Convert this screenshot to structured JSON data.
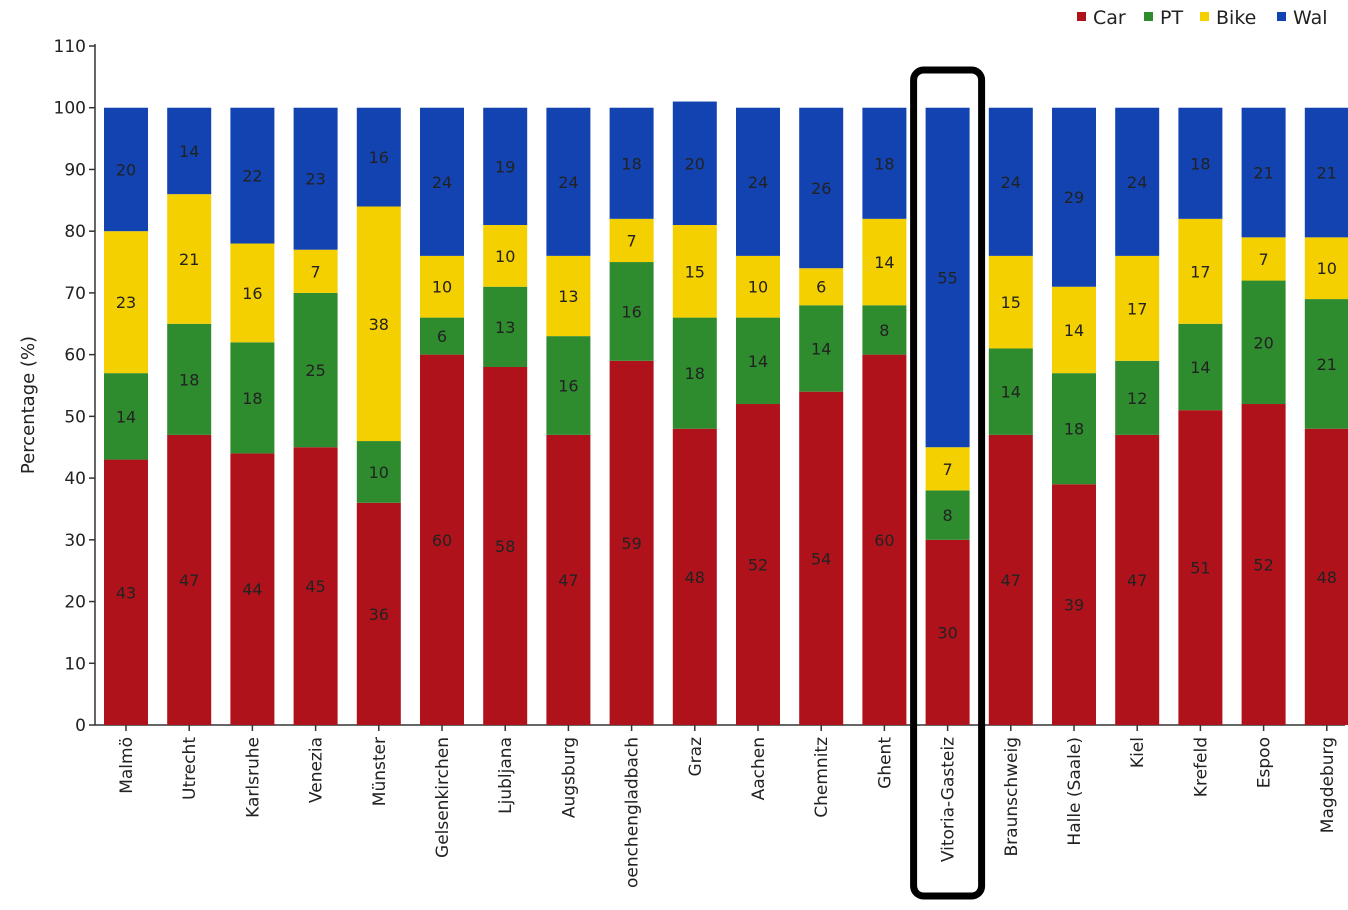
{
  "chart_data": {
    "type": "bar",
    "stacked": true,
    "title": "",
    "xlabel": "",
    "ylabel": "Percentage (%)",
    "ylim": [
      0,
      110
    ],
    "yticks": [
      0,
      10,
      20,
      30,
      40,
      50,
      60,
      70,
      80,
      90,
      100,
      110
    ],
    "grid": false,
    "legend_position": "top-right",
    "categories": [
      "Malmö",
      "Utrecht",
      "Karlsruhe",
      "Venezia",
      "Münster",
      "Gelsenkirchen",
      "Ljubljana",
      "Augsburg",
      "oenchengladbach",
      "Graz",
      "Aachen",
      "Chemnitz",
      "Ghent",
      "Vitoria-Gasteiz",
      "Braunschweig",
      "Halle (Saale)",
      "Kiel",
      "Krefeld",
      "Espoo",
      "Magdeburg"
    ],
    "series": [
      {
        "name": "Car",
        "color": "#b0121b",
        "values": [
          43,
          47,
          44,
          45,
          36,
          60,
          58,
          47,
          59,
          48,
          52,
          54,
          60,
          30,
          47,
          39,
          47,
          51,
          52,
          48
        ]
      },
      {
        "name": "PT",
        "color": "#2e8b2e",
        "values": [
          14,
          18,
          18,
          25,
          10,
          6,
          13,
          16,
          16,
          18,
          14,
          14,
          8,
          8,
          14,
          18,
          12,
          14,
          20,
          21
        ]
      },
      {
        "name": "Bike",
        "color": "#f5d000",
        "values": [
          23,
          21,
          16,
          7,
          38,
          10,
          10,
          13,
          7,
          15,
          10,
          6,
          14,
          7,
          15,
          14,
          17,
          17,
          7,
          10
        ]
      },
      {
        "name": "Walk",
        "color": "#1243b0",
        "values": [
          20,
          14,
          22,
          23,
          16,
          24,
          19,
          24,
          18,
          20,
          24,
          26,
          18,
          55,
          24,
          29,
          24,
          18,
          21,
          21
        ]
      }
    ],
    "legend_labels": [
      "Car",
      "PT",
      "Bike",
      "Wal"
    ],
    "highlighted_category": "Vitoria-Gasteiz"
  }
}
